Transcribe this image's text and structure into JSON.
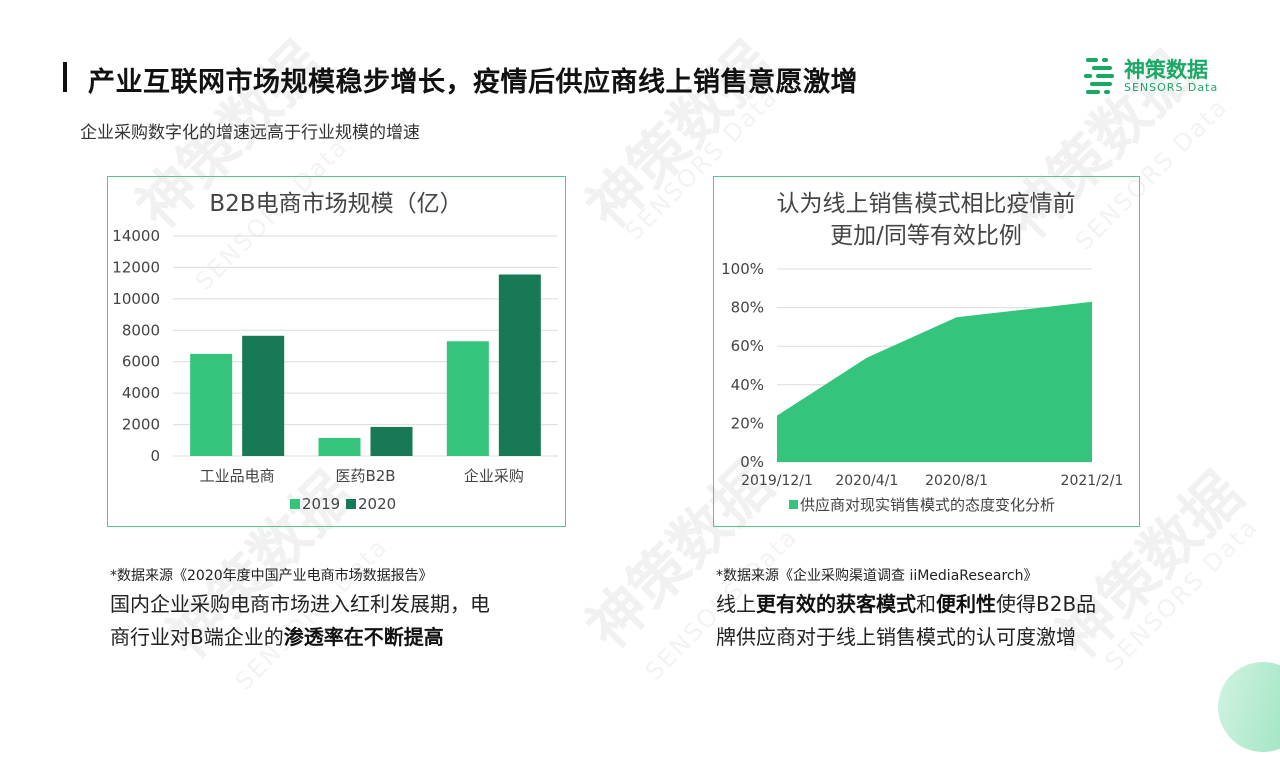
{
  "header": {
    "title": "产业互联网市场规模稳步增长，疫情后供应商线上销售意愿激增",
    "subtitle": "企业采购数字化的增速远高于行业规模的增速"
  },
  "logo": {
    "name": "神策数据",
    "en": "SENSORS Data"
  },
  "watermark": {
    "text": "神策数据",
    "sub": "SENSORS Data"
  },
  "colors": {
    "accent": "#1aa865",
    "bar2019": "#34c47c",
    "bar2020": "#177a55",
    "area": "#34c47c",
    "border": "#5cc38c"
  },
  "chart_data": [
    {
      "type": "bar",
      "title": "B2B电商市场规模（亿）",
      "categories": [
        "工业品电商",
        "医药B2B",
        "企业采购"
      ],
      "series": [
        {
          "name": "2019",
          "values": [
            6500,
            1150,
            7300
          ]
        },
        {
          "name": "2020",
          "values": [
            7650,
            1850,
            11550
          ]
        }
      ],
      "ylim": [
        0,
        14000
      ],
      "yticks": [
        "0",
        "2000",
        "4000",
        "6000",
        "8000",
        "10000",
        "12000",
        "14000"
      ],
      "grid": true,
      "legend": "bottom"
    },
    {
      "type": "area",
      "title": [
        "认为线上销售模式相比疫情前",
        "更加/同等有效比例"
      ],
      "x": [
        "2019/12/1",
        "2020/4/1",
        "2020/8/1",
        "2021/2/1"
      ],
      "x_days": [
        0,
        122,
        244,
        428
      ],
      "series": [
        {
          "name": "供应商对现实销售模式的态度变化分析",
          "x_days": [
            0,
            122,
            244,
            428
          ],
          "values": [
            0.24,
            0.54,
            0.75,
            0.83
          ]
        }
      ],
      "ylim": [
        0,
        1
      ],
      "yticks": [
        "0%",
        "20%",
        "40%",
        "60%",
        "80%",
        "100%"
      ],
      "grid": true,
      "legend": "bottom"
    }
  ],
  "left_note": {
    "source": "*数据来源《2020年度中国产业电商市场数据报告》",
    "line1": "国内企业采购电商市场进入红利发展期，电",
    "line2_pre": "商行业对B端企业的",
    "line2_bold": "渗透率在不断提高"
  },
  "right_note": {
    "source": "*数据来源《企业采购渠道调查 iiMediaResearch》",
    "l1_a": "线上",
    "l1_b": "更有效的获客模式",
    "l1_c": "和",
    "l1_d": "便利性",
    "l1_e": "使得B2B品",
    "line2": "牌供应商对于线上销售模式的认可度激增"
  }
}
